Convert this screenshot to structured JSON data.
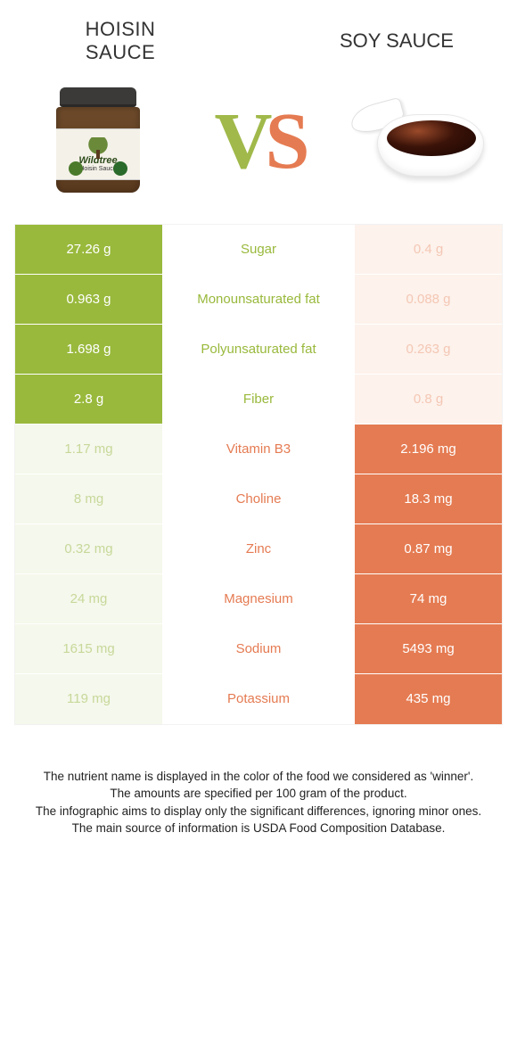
{
  "colors": {
    "left": "#99b93c",
    "left_dim_bg": "#f5f8ec",
    "left_dim_fg": "#c7d89a",
    "right": "#e57b52",
    "right_dim_bg": "#fdf2ec",
    "right_dim_fg": "#f4c7b4",
    "text": "#333333"
  },
  "header": {
    "left_line1": "HOISIN",
    "left_line2": "SAUCE",
    "right": "SOY SAUCE",
    "vs_v": "V",
    "vs_s": "S"
  },
  "jar": {
    "brand": "Wildtree",
    "sub": "Hoisin Sauce"
  },
  "rows": [
    {
      "label": "Sugar",
      "left": "27.26 g",
      "right": "0.4 g",
      "winner": "left"
    },
    {
      "label": "Monounsaturated fat",
      "left": "0.963 g",
      "right": "0.088 g",
      "winner": "left"
    },
    {
      "label": "Polyunsaturated fat",
      "left": "1.698 g",
      "right": "0.263 g",
      "winner": "left"
    },
    {
      "label": "Fiber",
      "left": "2.8 g",
      "right": "0.8 g",
      "winner": "left"
    },
    {
      "label": "Vitamin B3",
      "left": "1.17 mg",
      "right": "2.196 mg",
      "winner": "right"
    },
    {
      "label": "Choline",
      "left": "8 mg",
      "right": "18.3 mg",
      "winner": "right"
    },
    {
      "label": "Zinc",
      "left": "0.32 mg",
      "right": "0.87 mg",
      "winner": "right"
    },
    {
      "label": "Magnesium",
      "left": "24 mg",
      "right": "74 mg",
      "winner": "right"
    },
    {
      "label": "Sodium",
      "left": "1615 mg",
      "right": "5493 mg",
      "winner": "right"
    },
    {
      "label": "Potassium",
      "left": "119 mg",
      "right": "435 mg",
      "winner": "right"
    }
  ],
  "footer": {
    "l1": "The nutrient name is displayed in the color of the food we considered as 'winner'.",
    "l2": "The amounts are specified per 100 gram of the product.",
    "l3": "The infographic aims to display only the significant differences, ignoring minor ones.",
    "l4": "The main source of information is USDA Food Composition Database."
  }
}
